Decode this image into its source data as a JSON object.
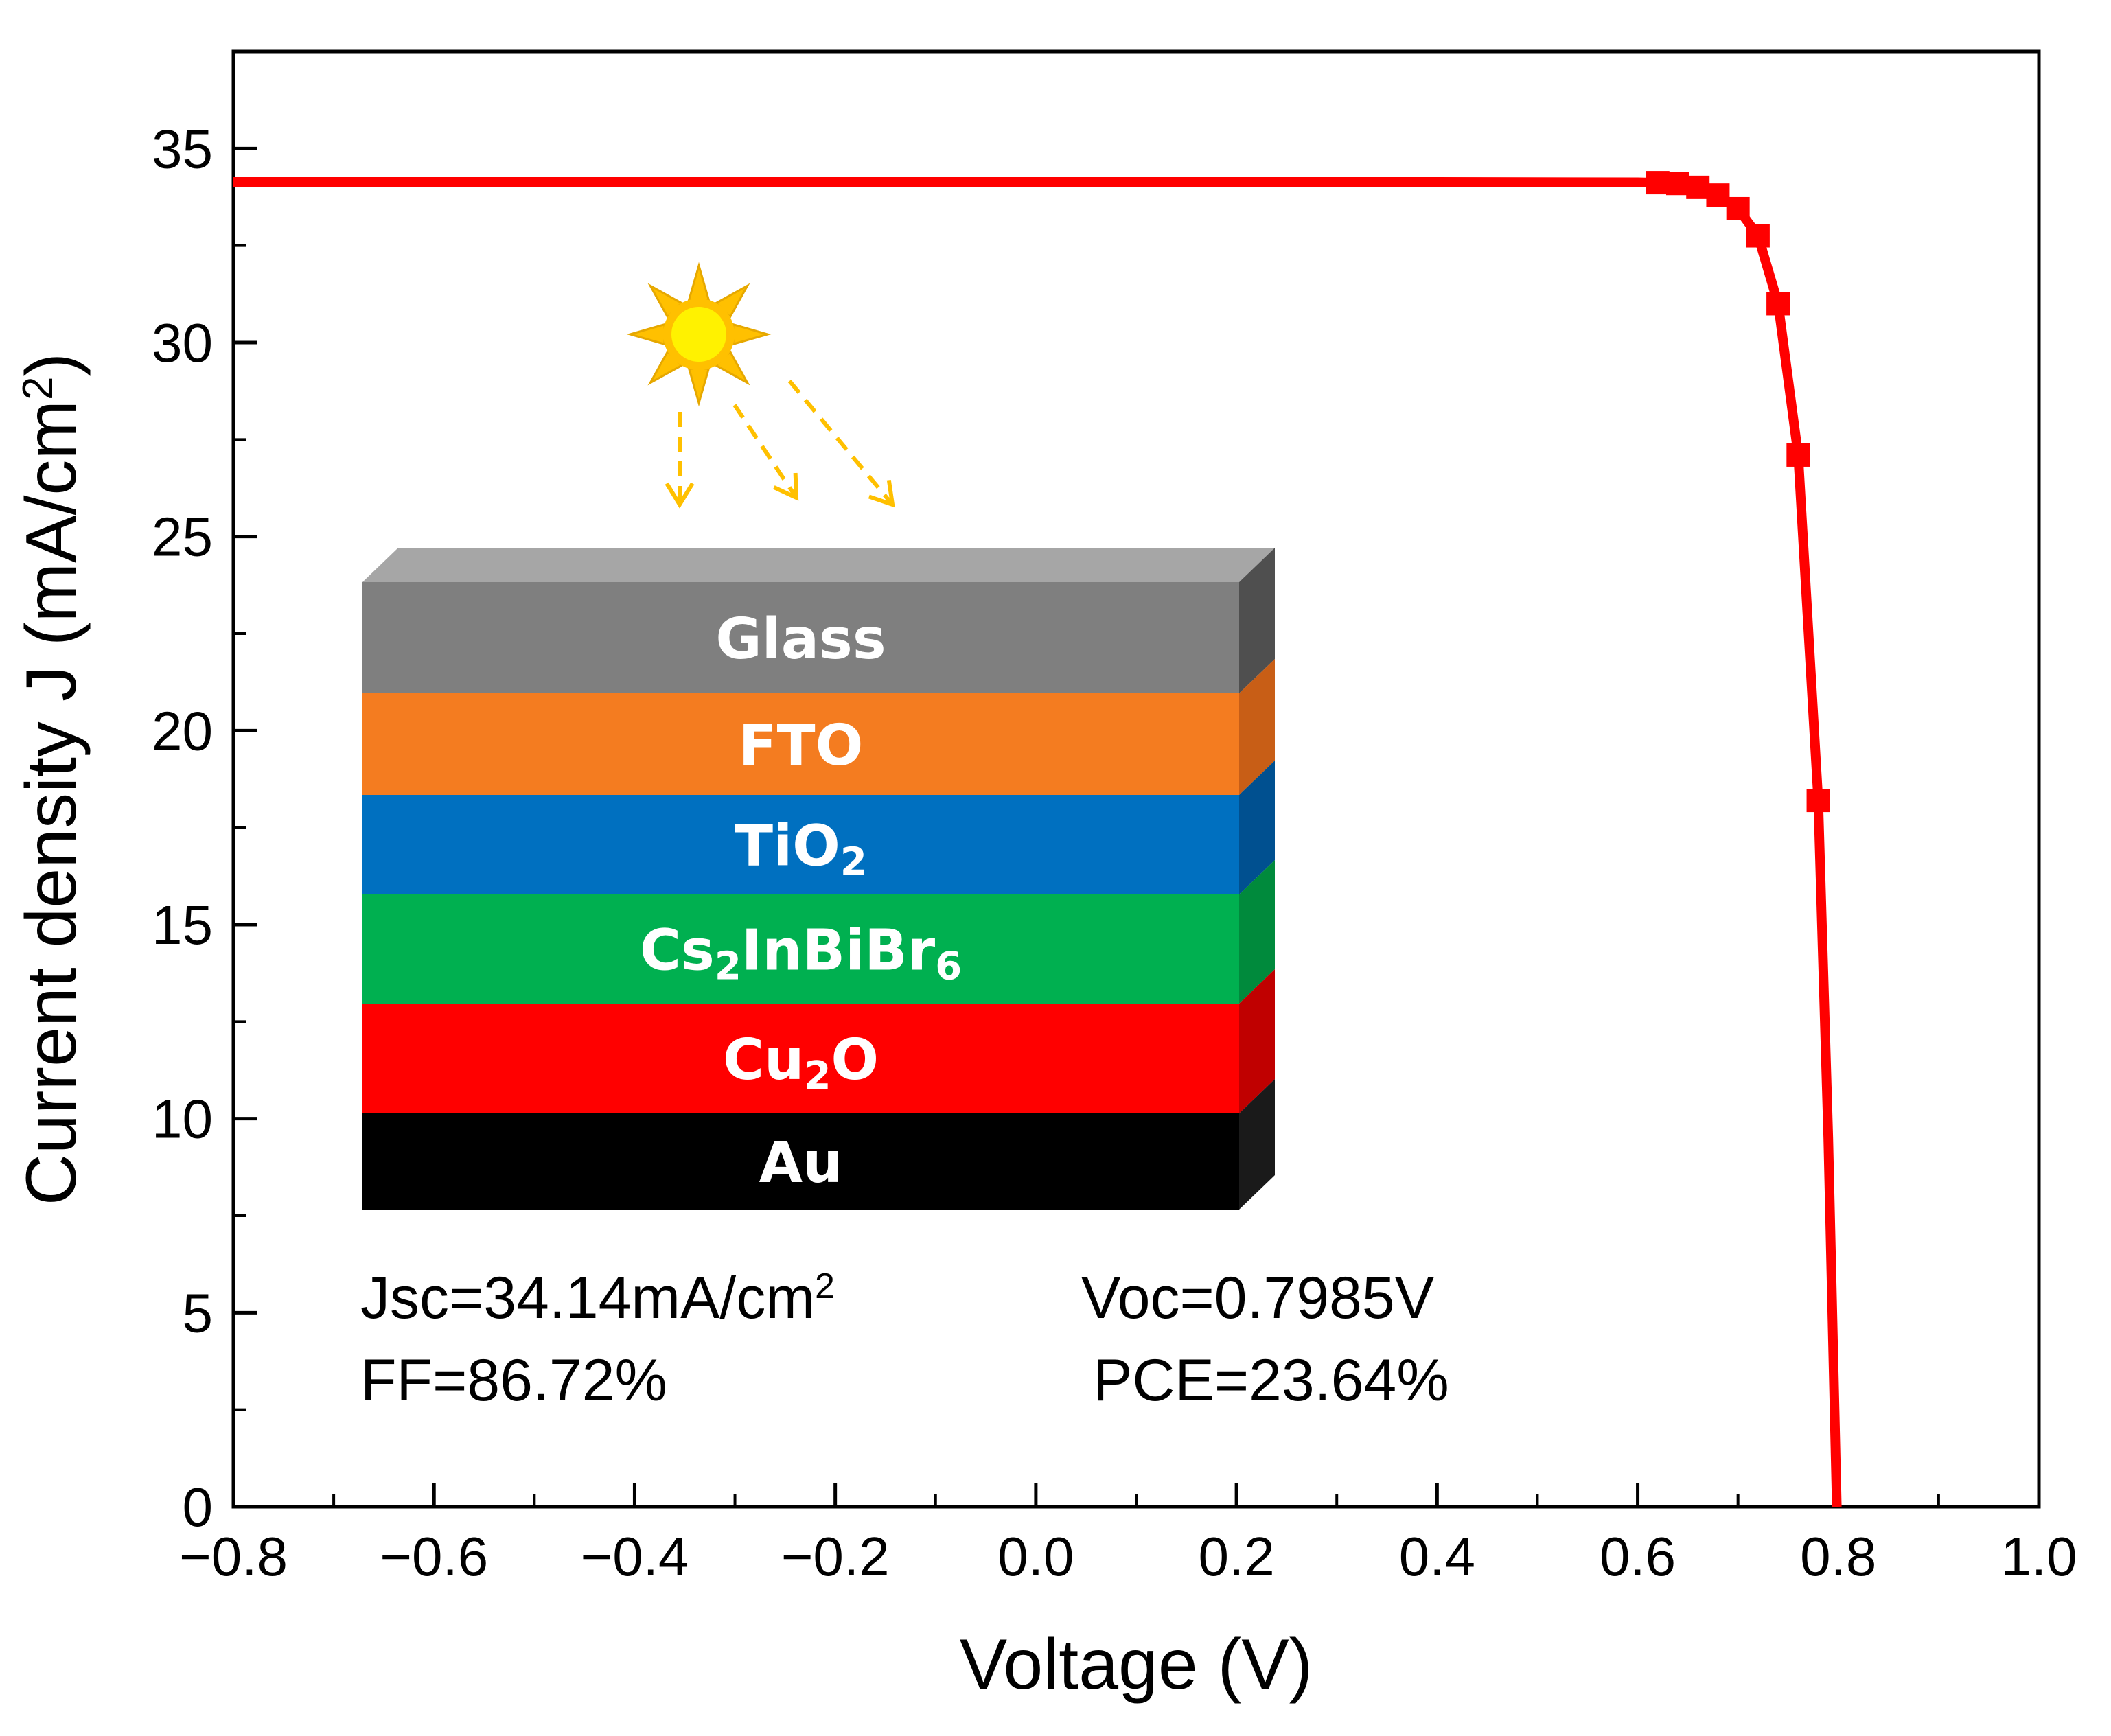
{
  "chart_data": {
    "type": "line",
    "xlabel": "Voltage (V)",
    "ylabel": "Current density J (mA/cm²)",
    "xlim": [
      -0.8,
      1.0
    ],
    "ylim": [
      0,
      37.5
    ],
    "x_ticks": [
      -0.8,
      -0.6,
      -0.4,
      -0.2,
      0.0,
      0.2,
      0.4,
      0.6,
      0.8,
      1.0
    ],
    "x_tick_labels": [
      "−0.8",
      "−0.6",
      "−0.4",
      "−0.2",
      "0.0",
      "0.2",
      "0.4",
      "0.6",
      "0.8",
      "1.0"
    ],
    "y_ticks": [
      0,
      5,
      10,
      15,
      20,
      25,
      30,
      35
    ],
    "y_tick_labels": [
      "0",
      "5",
      "10",
      "15",
      "20",
      "25",
      "30",
      "35"
    ],
    "grid": false,
    "series": [
      {
        "color": "#ff0000",
        "marker": "square",
        "x": [
          -0.8,
          -0.6,
          -0.4,
          -0.2,
          0.0,
          0.2,
          0.4,
          0.6,
          0.62,
          0.64,
          0.66,
          0.68,
          0.7,
          0.72,
          0.74,
          0.76,
          0.78,
          0.79,
          0.7985
        ],
        "y": [
          34.14,
          34.14,
          34.14,
          34.14,
          34.14,
          34.14,
          34.14,
          34.13,
          34.12,
          34.1,
          34.0,
          33.8,
          33.45,
          32.75,
          31.0,
          27.1,
          18.2,
          9.5,
          0.0
        ],
        "marker_x": [
          0.62,
          0.64,
          0.66,
          0.68,
          0.7,
          0.72,
          0.74,
          0.76,
          0.78
        ]
      }
    ],
    "annotations": {
      "jsc": "Jsc=34.14mA/cm",
      "jsc_sup": "2",
      "voc": "Voc=0.7985V",
      "ff": "FF=86.72%",
      "pce": "PCE=23.64%"
    }
  },
  "device_stack": {
    "layers": [
      {
        "base": "Glass",
        "sub": "",
        "tail": "",
        "color": "#7f7f7f",
        "side": "#4f4f4f"
      },
      {
        "base": "FTO",
        "sub": "",
        "tail": "",
        "color": "#f47c20",
        "side": "#c85e16"
      },
      {
        "base": "TiO",
        "sub": "2",
        "tail": "",
        "color": "#0070c0",
        "side": "#005090"
      },
      {
        "base": "Cs",
        "sub": "2",
        "tail": "InBiBr",
        "tail_sub": "6",
        "color": "#00b050",
        "side": "#008a3c"
      },
      {
        "base": "Cu",
        "sub": "2",
        "tail": "O",
        "color": "#ff0000",
        "side": "#c00000"
      },
      {
        "base": "Au",
        "sub": "",
        "tail": "",
        "color": "#000000",
        "side": "#1a1a1a"
      }
    ],
    "sun_color": "#ffc000",
    "ray_color": "#ffc000"
  }
}
